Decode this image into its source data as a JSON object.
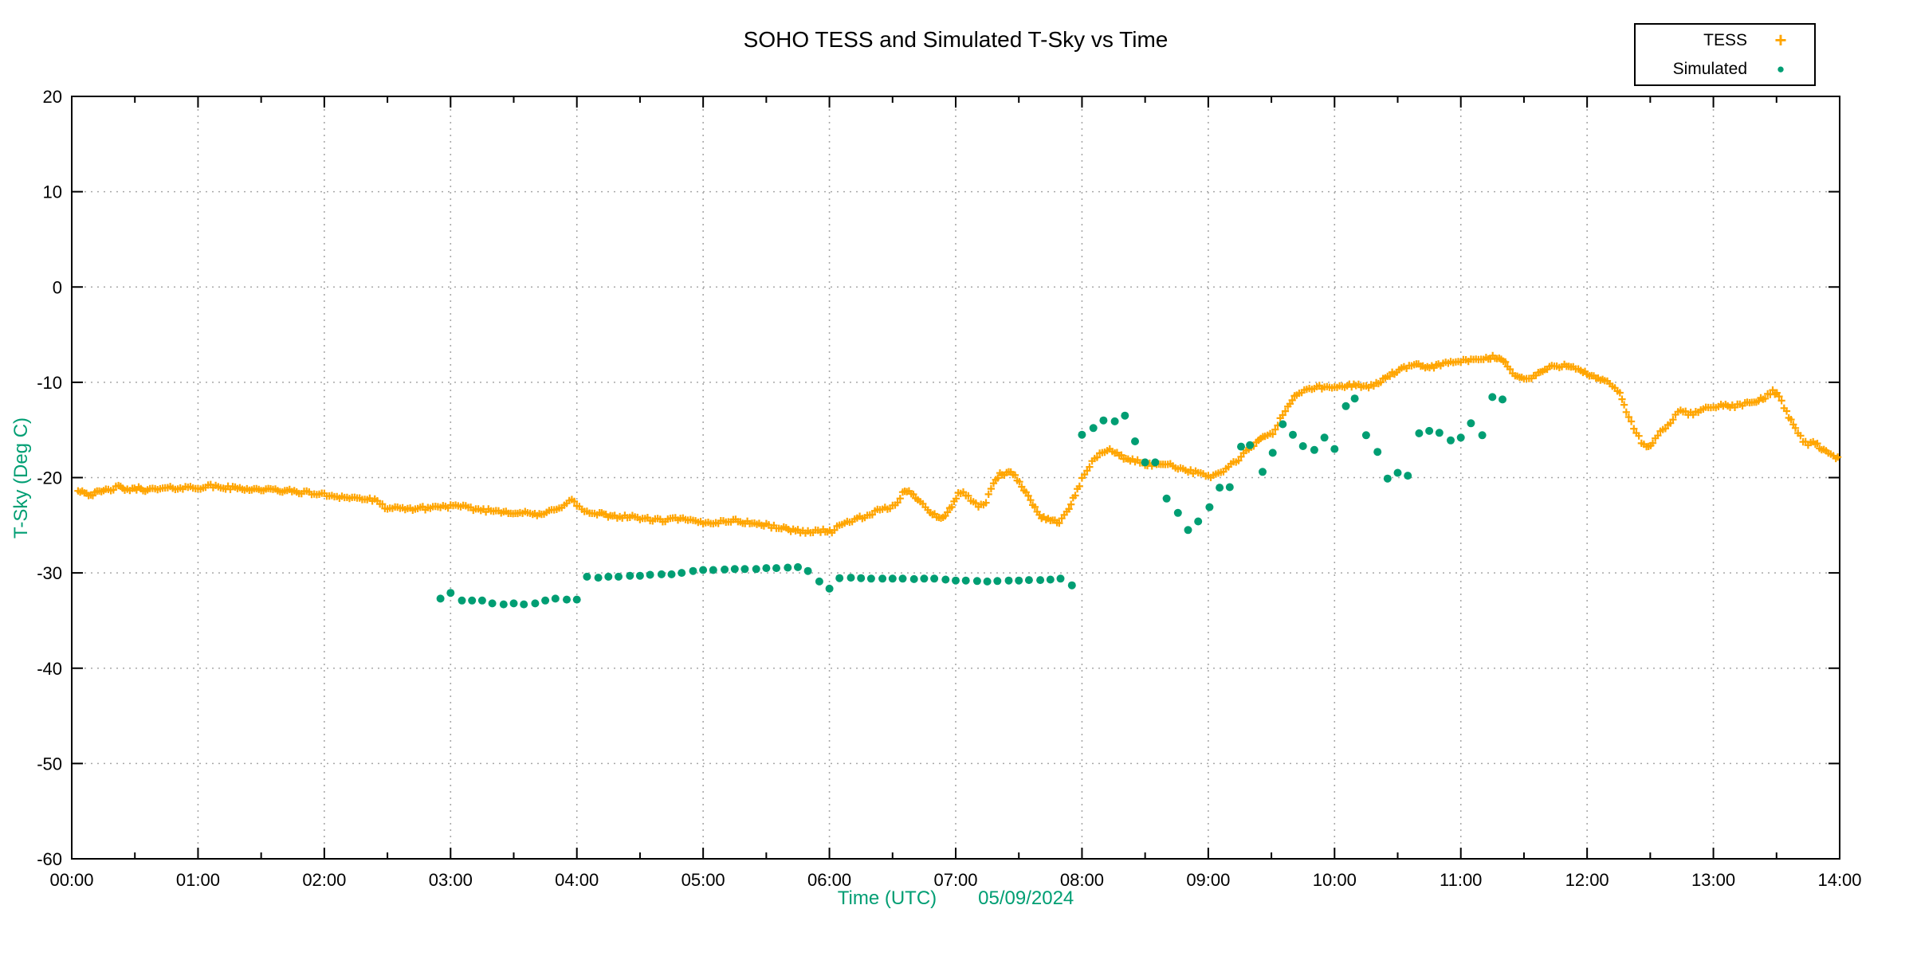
{
  "chart_data": {
    "type": "scatter",
    "title": "SOHO TESS and Simulated T-Sky vs Time",
    "ylabel": "T-Sky (Deg C)",
    "xlabel": "Time (UTC)",
    "date_label": "05/09/2024",
    "xlim_hours": [
      0,
      14
    ],
    "ylim": [
      -60,
      20
    ],
    "grid": "dotted gray at major ticks",
    "accent_colors": {
      "tess": "#FFA500",
      "simulated": "#009E73",
      "axis_label_green": "#009E73"
    },
    "x_axis": {
      "tick_labels": [
        "00:00",
        "01:00",
        "02:00",
        "03:00",
        "04:00",
        "05:00",
        "06:00",
        "07:00",
        "08:00",
        "09:00",
        "10:00",
        "11:00",
        "12:00",
        "13:00",
        "14:00"
      ],
      "tick_hours": [
        0,
        1,
        2,
        3,
        4,
        5,
        6,
        7,
        8,
        9,
        10,
        11,
        12,
        13,
        14
      ],
      "minor_tick_every_hours": 0.5
    },
    "y_axis": {
      "tick_labels": [
        "20",
        "10",
        "0",
        "-10",
        "-20",
        "-30",
        "-40",
        "-50",
        "-60"
      ],
      "tick_values": [
        20,
        10,
        0,
        -10,
        -20,
        -30,
        -40,
        -50,
        -60
      ]
    },
    "legend": {
      "position": "top-right",
      "entries": [
        {
          "label": "TESS",
          "marker": "plus",
          "color": "#FFA500"
        },
        {
          "label": "Simulated",
          "marker": "dot",
          "color": "#009E73"
        }
      ]
    },
    "series": [
      {
        "name": "TESS",
        "marker": "plus",
        "color": "#FFA500",
        "units": "hours_utc, deg_c",
        "anchor_points": [
          [
            0.05,
            -21.3
          ],
          [
            0.1,
            -21.5
          ],
          [
            0.15,
            -21.8
          ],
          [
            0.2,
            -21.6
          ],
          [
            0.27,
            -21.35
          ],
          [
            0.33,
            -21.15
          ],
          [
            0.37,
            -21.0
          ],
          [
            0.42,
            -21.2
          ],
          [
            0.48,
            -21.3
          ],
          [
            0.53,
            -21.1
          ],
          [
            0.6,
            -21.3
          ],
          [
            0.7,
            -21.2
          ],
          [
            0.8,
            -21.1
          ],
          [
            0.9,
            -21.05
          ],
          [
            1.0,
            -21.05
          ],
          [
            1.1,
            -20.9
          ],
          [
            1.2,
            -21.05
          ],
          [
            1.35,
            -21.15
          ],
          [
            1.5,
            -21.25
          ],
          [
            1.65,
            -21.35
          ],
          [
            1.8,
            -21.5
          ],
          [
            1.9,
            -21.65
          ],
          [
            2.0,
            -21.8
          ],
          [
            2.1,
            -21.95
          ],
          [
            2.2,
            -22.1
          ],
          [
            2.3,
            -22.2
          ],
          [
            2.4,
            -22.4
          ],
          [
            2.44,
            -22.8
          ],
          [
            2.5,
            -23.2
          ],
          [
            2.6,
            -23.3
          ],
          [
            2.7,
            -23.25
          ],
          [
            2.8,
            -23.2
          ],
          [
            2.9,
            -23.05
          ],
          [
            3.0,
            -23.0
          ],
          [
            3.1,
            -23.1
          ],
          [
            3.2,
            -23.3
          ],
          [
            3.3,
            -23.45
          ],
          [
            3.42,
            -23.55
          ],
          [
            3.55,
            -23.7
          ],
          [
            3.65,
            -23.8
          ],
          [
            3.72,
            -24.0
          ],
          [
            3.8,
            -23.4
          ],
          [
            3.88,
            -23.0
          ],
          [
            3.96,
            -22.35
          ],
          [
            4.0,
            -22.9
          ],
          [
            4.06,
            -23.5
          ],
          [
            4.12,
            -23.85
          ],
          [
            4.18,
            -23.8
          ],
          [
            4.23,
            -24.0
          ],
          [
            4.3,
            -24.05
          ],
          [
            4.4,
            -24.1
          ],
          [
            4.5,
            -24.25
          ],
          [
            4.62,
            -24.45
          ],
          [
            4.7,
            -24.5
          ],
          [
            4.8,
            -24.3
          ],
          [
            4.9,
            -24.55
          ],
          [
            5.0,
            -24.75
          ],
          [
            5.1,
            -24.7
          ],
          [
            5.22,
            -24.5
          ],
          [
            5.35,
            -24.7
          ],
          [
            5.5,
            -25.0
          ],
          [
            5.62,
            -25.3
          ],
          [
            5.75,
            -25.6
          ],
          [
            5.85,
            -25.7
          ],
          [
            5.95,
            -25.55
          ],
          [
            6.02,
            -25.65
          ],
          [
            6.1,
            -24.9
          ],
          [
            6.2,
            -24.35
          ],
          [
            6.3,
            -24.1
          ],
          [
            6.38,
            -23.5
          ],
          [
            6.46,
            -23.25
          ],
          [
            6.52,
            -22.9
          ],
          [
            6.58,
            -21.6
          ],
          [
            6.63,
            -21.5
          ],
          [
            6.7,
            -22.2
          ],
          [
            6.78,
            -23.3
          ],
          [
            6.85,
            -24.1
          ],
          [
            6.9,
            -24.3
          ],
          [
            6.97,
            -23.0
          ],
          [
            7.02,
            -21.6
          ],
          [
            7.06,
            -21.5
          ],
          [
            7.12,
            -22.4
          ],
          [
            7.18,
            -23.1
          ],
          [
            7.24,
            -22.6
          ],
          [
            7.3,
            -20.5
          ],
          [
            7.35,
            -19.7
          ],
          [
            7.42,
            -19.5
          ],
          [
            7.47,
            -19.8
          ],
          [
            7.54,
            -21.3
          ],
          [
            7.61,
            -22.8
          ],
          [
            7.68,
            -24.1
          ],
          [
            7.75,
            -24.5
          ],
          [
            7.82,
            -24.6
          ],
          [
            7.88,
            -23.7
          ],
          [
            7.93,
            -22.3
          ],
          [
            7.98,
            -20.8
          ],
          [
            8.02,
            -19.6
          ],
          [
            8.08,
            -18.4
          ],
          [
            8.14,
            -17.5
          ],
          [
            8.2,
            -17.0
          ],
          [
            8.26,
            -17.4
          ],
          [
            8.33,
            -17.9
          ],
          [
            8.4,
            -18.2
          ],
          [
            8.5,
            -18.55
          ],
          [
            8.59,
            -18.7
          ],
          [
            8.66,
            -18.45
          ],
          [
            8.74,
            -18.85
          ],
          [
            8.84,
            -19.25
          ],
          [
            8.94,
            -19.65
          ],
          [
            9.02,
            -19.85
          ],
          [
            9.08,
            -19.6
          ],
          [
            9.14,
            -19.1
          ],
          [
            9.22,
            -18.3
          ],
          [
            9.3,
            -17.3
          ],
          [
            9.38,
            -16.4
          ],
          [
            9.45,
            -15.6
          ],
          [
            9.51,
            -15.4
          ],
          [
            9.57,
            -13.9
          ],
          [
            9.63,
            -12.5
          ],
          [
            9.7,
            -11.3
          ],
          [
            9.78,
            -10.7
          ],
          [
            9.86,
            -10.5
          ],
          [
            9.94,
            -10.6
          ],
          [
            10.02,
            -10.5
          ],
          [
            10.1,
            -10.4
          ],
          [
            10.17,
            -10.2
          ],
          [
            10.25,
            -10.55
          ],
          [
            10.33,
            -10.2
          ],
          [
            10.42,
            -9.35
          ],
          [
            10.53,
            -8.65
          ],
          [
            10.63,
            -8.2
          ],
          [
            10.7,
            -8.3
          ],
          [
            10.77,
            -8.4
          ],
          [
            10.84,
            -8.1
          ],
          [
            10.92,
            -7.95
          ],
          [
            11.0,
            -7.8
          ],
          [
            11.1,
            -7.7
          ],
          [
            11.2,
            -7.5
          ],
          [
            11.27,
            -7.35
          ],
          [
            11.32,
            -7.6
          ],
          [
            11.37,
            -8.2
          ],
          [
            11.43,
            -9.3
          ],
          [
            11.5,
            -9.65
          ],
          [
            11.56,
            -9.55
          ],
          [
            11.63,
            -8.9
          ],
          [
            11.72,
            -8.4
          ],
          [
            11.82,
            -8.2
          ],
          [
            11.89,
            -8.3
          ],
          [
            11.95,
            -8.7
          ],
          [
            12.0,
            -9.15
          ],
          [
            12.07,
            -9.6
          ],
          [
            12.14,
            -9.9
          ],
          [
            12.2,
            -10.35
          ],
          [
            12.26,
            -11.1
          ],
          [
            12.31,
            -13.0
          ],
          [
            12.37,
            -14.8
          ],
          [
            12.43,
            -16.3
          ],
          [
            12.47,
            -16.8
          ],
          [
            12.52,
            -16.4
          ],
          [
            12.58,
            -15.3
          ],
          [
            12.64,
            -14.5
          ],
          [
            12.7,
            -13.5
          ],
          [
            12.74,
            -13.0
          ],
          [
            12.8,
            -13.3
          ],
          [
            12.86,
            -13.2
          ],
          [
            12.92,
            -12.8
          ],
          [
            12.98,
            -12.5
          ],
          [
            13.06,
            -12.5
          ],
          [
            13.15,
            -12.5
          ],
          [
            13.25,
            -12.3
          ],
          [
            13.34,
            -12.0
          ],
          [
            13.41,
            -11.6
          ],
          [
            13.47,
            -10.9
          ],
          [
            13.52,
            -11.4
          ],
          [
            13.58,
            -13.1
          ],
          [
            13.65,
            -14.9
          ],
          [
            13.71,
            -16.1
          ],
          [
            13.75,
            -16.5
          ],
          [
            13.79,
            -16.1
          ],
          [
            13.84,
            -16.8
          ],
          [
            13.91,
            -17.5
          ],
          [
            13.97,
            -17.9
          ],
          [
            14.0,
            -18.0
          ]
        ]
      },
      {
        "name": "Simulated",
        "marker": "dot",
        "color": "#009E73",
        "units": "hours_utc, deg_c",
        "points": [
          [
            2.92,
            -32.7
          ],
          [
            3.0,
            -32.1
          ],
          [
            3.09,
            -32.9
          ],
          [
            3.17,
            -32.9
          ],
          [
            3.25,
            -32.9
          ],
          [
            3.33,
            -33.2
          ],
          [
            3.42,
            -33.3
          ],
          [
            3.5,
            -33.2
          ],
          [
            3.58,
            -33.3
          ],
          [
            3.67,
            -33.2
          ],
          [
            3.75,
            -32.9
          ],
          [
            3.83,
            -32.7
          ],
          [
            3.92,
            -32.8
          ],
          [
            4.0,
            -32.8
          ],
          [
            4.08,
            -30.4
          ],
          [
            4.17,
            -30.5
          ],
          [
            4.25,
            -30.4
          ],
          [
            4.33,
            -30.4
          ],
          [
            4.42,
            -30.3
          ],
          [
            4.5,
            -30.3
          ],
          [
            4.58,
            -30.2
          ],
          [
            4.67,
            -30.15
          ],
          [
            4.75,
            -30.15
          ],
          [
            4.83,
            -30.0
          ],
          [
            4.92,
            -29.8
          ],
          [
            5.0,
            -29.7
          ],
          [
            5.08,
            -29.7
          ],
          [
            5.17,
            -29.65
          ],
          [
            5.25,
            -29.6
          ],
          [
            5.33,
            -29.6
          ],
          [
            5.42,
            -29.6
          ],
          [
            5.5,
            -29.5
          ],
          [
            5.58,
            -29.5
          ],
          [
            5.67,
            -29.45
          ],
          [
            5.75,
            -29.4
          ],
          [
            5.83,
            -29.8
          ],
          [
            5.92,
            -30.9
          ],
          [
            6.0,
            -31.65
          ],
          [
            6.08,
            -30.55
          ],
          [
            6.17,
            -30.5
          ],
          [
            6.25,
            -30.55
          ],
          [
            6.33,
            -30.6
          ],
          [
            6.42,
            -30.6
          ],
          [
            6.5,
            -30.6
          ],
          [
            6.58,
            -30.6
          ],
          [
            6.67,
            -30.65
          ],
          [
            6.75,
            -30.6
          ],
          [
            6.83,
            -30.6
          ],
          [
            6.92,
            -30.7
          ],
          [
            7.0,
            -30.8
          ],
          [
            7.08,
            -30.8
          ],
          [
            7.17,
            -30.85
          ],
          [
            7.25,
            -30.9
          ],
          [
            7.33,
            -30.85
          ],
          [
            7.42,
            -30.8
          ],
          [
            7.5,
            -30.8
          ],
          [
            7.58,
            -30.75
          ],
          [
            7.67,
            -30.75
          ],
          [
            7.75,
            -30.7
          ],
          [
            7.83,
            -30.6
          ],
          [
            7.92,
            -31.3
          ],
          [
            8.0,
            -15.5
          ],
          [
            8.09,
            -14.8
          ],
          [
            8.17,
            -14.0
          ],
          [
            8.26,
            -14.1
          ],
          [
            8.34,
            -13.5
          ],
          [
            8.42,
            -16.2
          ],
          [
            8.5,
            -18.4
          ],
          [
            8.58,
            -18.4
          ],
          [
            8.67,
            -22.2
          ],
          [
            8.76,
            -23.7
          ],
          [
            8.84,
            -25.5
          ],
          [
            8.92,
            -24.6
          ],
          [
            9.01,
            -23.1
          ],
          [
            9.09,
            -21.05
          ],
          [
            9.17,
            -21.0
          ],
          [
            9.26,
            -16.75
          ],
          [
            9.33,
            -16.6
          ],
          [
            9.43,
            -19.4
          ],
          [
            9.51,
            -17.4
          ],
          [
            9.59,
            -14.4
          ],
          [
            9.67,
            -15.5
          ],
          [
            9.75,
            -16.7
          ],
          [
            9.84,
            -17.1
          ],
          [
            9.92,
            -15.8
          ],
          [
            10.0,
            -17.0
          ],
          [
            10.09,
            -12.5
          ],
          [
            10.16,
            -11.7
          ],
          [
            10.25,
            -15.55
          ],
          [
            10.34,
            -17.3
          ],
          [
            10.42,
            -20.1
          ],
          [
            10.5,
            -19.5
          ],
          [
            10.58,
            -19.8
          ],
          [
            10.67,
            -15.35
          ],
          [
            10.75,
            -15.1
          ],
          [
            10.83,
            -15.3
          ],
          [
            10.92,
            -16.1
          ],
          [
            11.0,
            -15.8
          ],
          [
            11.08,
            -14.3
          ],
          [
            11.17,
            -15.55
          ],
          [
            11.25,
            -11.55
          ],
          [
            11.33,
            -11.8
          ]
        ]
      }
    ]
  }
}
